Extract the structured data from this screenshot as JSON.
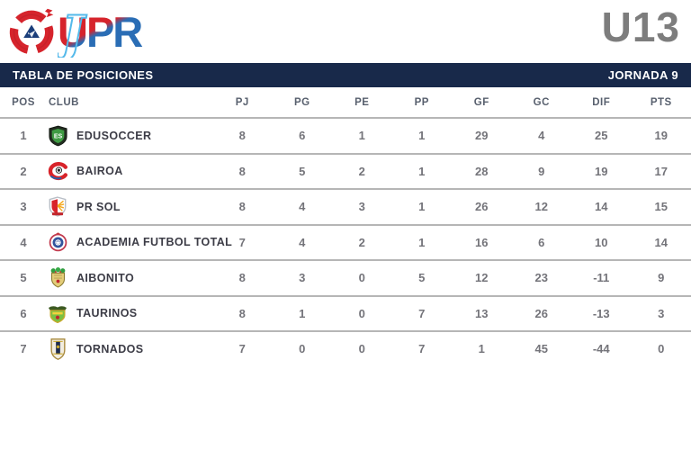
{
  "page": {
    "category_label": "U13"
  },
  "logo": {
    "name": "liga-pr-logo",
    "wordmark": "UPR",
    "script_letter": "J"
  },
  "title_bar": {
    "title": "TABLA DE POSICIONES",
    "jornada": "JORNADA 9"
  },
  "chart_data": {
    "type": "table",
    "title": "TABLA DE POSICIONES",
    "subtitle": "JORNADA 9",
    "category": "U13",
    "columns": [
      "POS",
      "CLUB",
      "PJ",
      "PG",
      "PE",
      "PP",
      "GF",
      "GC",
      "DIF",
      "PTS"
    ],
    "rows": [
      {
        "pos": "1",
        "club": "EDUSOCCER",
        "badge": "edusoccer-badge",
        "pj": "8",
        "pg": "6",
        "pe": "1",
        "pp": "1",
        "gf": "29",
        "gc": "4",
        "dif": "25",
        "pts": "19"
      },
      {
        "pos": "2",
        "club": "BAIROA",
        "badge": "bairoa-badge",
        "pj": "8",
        "pg": "5",
        "pe": "2",
        "pp": "1",
        "gf": "28",
        "gc": "9",
        "dif": "19",
        "pts": "17"
      },
      {
        "pos": "3",
        "club": "PR SOL",
        "badge": "pr-sol-badge",
        "pj": "8",
        "pg": "4",
        "pe": "3",
        "pp": "1",
        "gf": "26",
        "gc": "12",
        "dif": "14",
        "pts": "15"
      },
      {
        "pos": "4",
        "club": "ACADEMIA FUTBOL TOTAL",
        "badge": "academia-futbol-total-badge",
        "pj": "7",
        "pg": "4",
        "pe": "2",
        "pp": "1",
        "gf": "16",
        "gc": "6",
        "dif": "10",
        "pts": "14"
      },
      {
        "pos": "5",
        "club": "AIBONITO",
        "badge": "aibonito-badge",
        "pj": "8",
        "pg": "3",
        "pe": "0",
        "pp": "5",
        "gf": "12",
        "gc": "23",
        "dif": "-11",
        "pts": "9"
      },
      {
        "pos": "6",
        "club": "TAURINOS",
        "badge": "taurinos-badge",
        "pj": "8",
        "pg": "1",
        "pe": "0",
        "pp": "7",
        "gf": "13",
        "gc": "26",
        "dif": "-13",
        "pts": "3"
      },
      {
        "pos": "7",
        "club": "TORNADOS",
        "badge": "tornados-badge",
        "pj": "7",
        "pg": "0",
        "pe": "0",
        "pp": "7",
        "gf": "1",
        "gc": "45",
        "dif": "-44",
        "pts": "0"
      }
    ]
  },
  "colors": {
    "navy": "#18294a",
    "u13Gray": "#7d7d7d",
    "headerText": "#58606e",
    "clubText": "#3c3c46",
    "numText": "#74747a",
    "divider": "#b6b6b6",
    "logoRed": "#d6242c",
    "logoBlue": "#2a6db5",
    "logoLightBlue": "#54b9ea"
  }
}
